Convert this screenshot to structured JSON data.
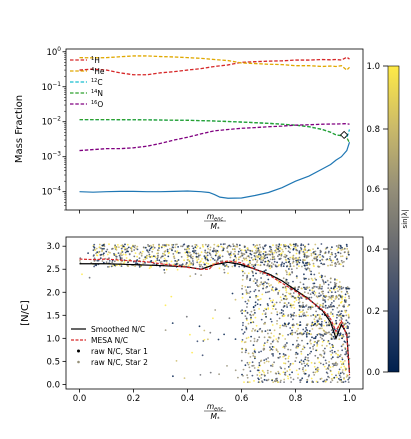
{
  "chart_data": [
    {
      "type": "line",
      "ylabel": "Mass Fraction",
      "xlabel_num": "m",
      "xlabel_num_sub": "enc",
      "xlabel_den": "M",
      "xlabel_den_sub": "*",
      "yscale": "log",
      "xlim": [
        -0.05,
        1.05
      ],
      "ylim": [
        3e-05,
        1.2
      ],
      "yticks": [
        {
          "value": 1,
          "base": "10",
          "exp": "0"
        },
        {
          "value": 0.1,
          "base": "10",
          "exp": "−1"
        },
        {
          "value": 0.01,
          "base": "10",
          "exp": "−2"
        },
        {
          "value": 0.001,
          "base": "10",
          "exp": "−3"
        },
        {
          "value": 0.0001,
          "base": "10",
          "exp": "−4"
        }
      ],
      "legend": {
        "position": "upper left"
      },
      "series": [
        {
          "name": "1H",
          "sup": "1",
          "label": "H",
          "color": "#d62728",
          "x": [
            0.0,
            0.05,
            0.1,
            0.15,
            0.2,
            0.25,
            0.3,
            0.35,
            0.4,
            0.45,
            0.5,
            0.55,
            0.6,
            0.65,
            0.7,
            0.75,
            0.8,
            0.85,
            0.9,
            0.93,
            0.95,
            0.97,
            0.99,
            1.0
          ],
          "y": [
            0.3,
            0.32,
            0.3,
            0.25,
            0.22,
            0.22,
            0.25,
            0.27,
            0.3,
            0.33,
            0.38,
            0.42,
            0.5,
            0.52,
            0.54,
            0.55,
            0.58,
            0.58,
            0.6,
            0.59,
            0.6,
            0.58,
            0.7,
            0.62
          ]
        },
        {
          "name": "4He",
          "sup": "4",
          "label": "He",
          "color": "#e0a800",
          "x": [
            0.0,
            0.05,
            0.1,
            0.15,
            0.2,
            0.25,
            0.3,
            0.35,
            0.4,
            0.45,
            0.5,
            0.55,
            0.6,
            0.65,
            0.7,
            0.75,
            0.8,
            0.85,
            0.9,
            0.93,
            0.95,
            0.97,
            0.99,
            1.0
          ],
          "y": [
            0.68,
            0.67,
            0.68,
            0.72,
            0.76,
            0.76,
            0.73,
            0.71,
            0.68,
            0.65,
            0.6,
            0.56,
            0.48,
            0.46,
            0.44,
            0.43,
            0.4,
            0.4,
            0.38,
            0.39,
            0.38,
            0.4,
            0.3,
            0.36
          ]
        },
        {
          "name": "12C",
          "sup": "12",
          "label": "C",
          "color": "#17becf",
          "x": [
            0.0,
            0.1,
            0.2,
            0.3,
            0.4,
            0.5,
            0.6,
            0.7,
            0.8,
            0.85,
            0.9,
            0.93,
            0.95,
            0.97,
            0.99,
            1.0
          ],
          "y": [
            0.0115,
            0.0115,
            0.0114,
            0.0112,
            0.011,
            0.0105,
            0.0098,
            0.009,
            0.008,
            0.0072,
            0.006,
            0.005,
            0.0042,
            0.004,
            0.0035,
            0.006
          ]
        },
        {
          "name": "14N",
          "sup": "14",
          "label": "N",
          "color": "#2ca02c",
          "x": [
            0.0,
            0.1,
            0.2,
            0.3,
            0.4,
            0.5,
            0.6,
            0.7,
            0.8,
            0.85,
            0.9,
            0.93,
            0.95,
            0.97,
            0.99,
            1.0
          ],
          "y": [
            0.0115,
            0.0115,
            0.0114,
            0.0112,
            0.011,
            0.0105,
            0.0098,
            0.009,
            0.008,
            0.0072,
            0.006,
            0.005,
            0.0042,
            0.004,
            0.0035,
            0.0025
          ]
        },
        {
          "name": "16O",
          "sup": "16",
          "label": "O",
          "color": "#800080",
          "x": [
            0.0,
            0.05,
            0.1,
            0.15,
            0.2,
            0.25,
            0.3,
            0.35,
            0.4,
            0.45,
            0.5,
            0.55,
            0.6,
            0.65,
            0.7,
            0.75,
            0.8,
            0.85,
            0.9,
            0.93,
            0.95,
            0.97,
            0.99,
            1.0
          ],
          "y": [
            0.0015,
            0.0016,
            0.0017,
            0.0017,
            0.0018,
            0.002,
            0.0024,
            0.003,
            0.0036,
            0.0045,
            0.0055,
            0.006,
            0.0065,
            0.0068,
            0.0072,
            0.0075,
            0.008,
            0.0082,
            0.0085,
            0.0086,
            0.0086,
            0.0087,
            0.0088,
            0.0085
          ]
        },
        {
          "name": "smooth",
          "color": "#1f77b4",
          "legend": false,
          "x": [
            0.0,
            0.05,
            0.1,
            0.15,
            0.2,
            0.25,
            0.3,
            0.35,
            0.4,
            0.45,
            0.48,
            0.5,
            0.52,
            0.55,
            0.6,
            0.65,
            0.7,
            0.75,
            0.8,
            0.85,
            0.9,
            0.93,
            0.95,
            0.97,
            0.99,
            1.0
          ],
          "y": [
            0.0001,
            9.7e-05,
            0.0001,
            0.000102,
            0.000102,
            0.0001,
            0.0001,
            0.000102,
            0.000105,
            0.0001,
            9.5e-05,
            8.3e-05,
            7e-05,
            6.5e-05,
            6.6e-05,
            7.8e-05,
            9.5e-05,
            0.00013,
            0.0002,
            0.00028,
            0.00045,
            0.0006,
            0.0008,
            0.001,
            0.0015,
            0.0026
          ]
        }
      ],
      "markers": [
        {
          "x": 0.98,
          "y": 0.0042,
          "shape": "diamond"
        }
      ]
    },
    {
      "type": "scatter",
      "ylabel": "[N/C]",
      "xlabel_num": "m",
      "xlabel_num_sub": "enc",
      "xlabel_den": "M",
      "xlabel_den_sub": "*",
      "xlim": [
        -0.05,
        1.05
      ],
      "ylim": [
        -0.1,
        3.2
      ],
      "xticks": [
        "0.0",
        "0.2",
        "0.4",
        "0.6",
        "0.8",
        "1.0"
      ],
      "yticks": [
        "0.0",
        "0.5",
        "1.0",
        "1.5",
        "2.0",
        "2.5",
        "3.0"
      ],
      "legend": {
        "position": "lower left",
        "entries": [
          "Smoothed N/C",
          "MESA N/C",
          "raw N/C, Star 1",
          "raw N/C, Star 2"
        ]
      },
      "series": [
        {
          "name": "Smoothed N/C",
          "kind": "line",
          "color": "#000000",
          "x": [
            0.0,
            0.1,
            0.2,
            0.3,
            0.4,
            0.45,
            0.5,
            0.55,
            0.6,
            0.65,
            0.7,
            0.75,
            0.8,
            0.85,
            0.9,
            0.93,
            0.95,
            0.97,
            0.99,
            1.0
          ],
          "y": [
            2.62,
            2.62,
            2.6,
            2.58,
            2.55,
            2.5,
            2.6,
            2.65,
            2.6,
            2.5,
            2.4,
            2.25,
            2.05,
            1.85,
            1.6,
            1.35,
            1.0,
            1.3,
            1.1,
            0.25
          ]
        },
        {
          "name": "MESA N/C",
          "kind": "line",
          "dashed": true,
          "color": "#d62728",
          "x": [
            0.0,
            0.05,
            0.1,
            0.15,
            0.2,
            0.25,
            0.3,
            0.35,
            0.4,
            0.45,
            0.48,
            0.5,
            0.55,
            0.6,
            0.65,
            0.7,
            0.75,
            0.8,
            0.85,
            0.88,
            0.9,
            0.93,
            0.95,
            0.97,
            0.99,
            1.0
          ],
          "y": [
            2.72,
            2.71,
            2.72,
            2.7,
            2.68,
            2.66,
            2.62,
            2.58,
            2.54,
            2.5,
            2.5,
            2.62,
            2.68,
            2.64,
            2.5,
            2.38,
            2.2,
            2.02,
            1.84,
            1.7,
            1.62,
            1.42,
            1.15,
            1.38,
            1.05,
            0.2
          ]
        },
        {
          "name": "raw N/C, Star 1",
          "kind": "points"
        },
        {
          "name": "raw N/C, Star 2",
          "kind": "points"
        }
      ]
    }
  ],
  "colorbar": {
    "label": "sin|λ|",
    "top": {
      "ticks": [
        "1.0",
        "0.8",
        "0.6"
      ],
      "range": [
        0.5,
        1.0
      ]
    },
    "bottom": {
      "ticks": [
        "0.4",
        "0.2",
        "0.0"
      ],
      "range": [
        0.0,
        0.47
      ]
    },
    "colors": [
      "#00204d",
      "#31446b",
      "#666970",
      "#958f78",
      "#cbba69",
      "#ffea46"
    ]
  }
}
